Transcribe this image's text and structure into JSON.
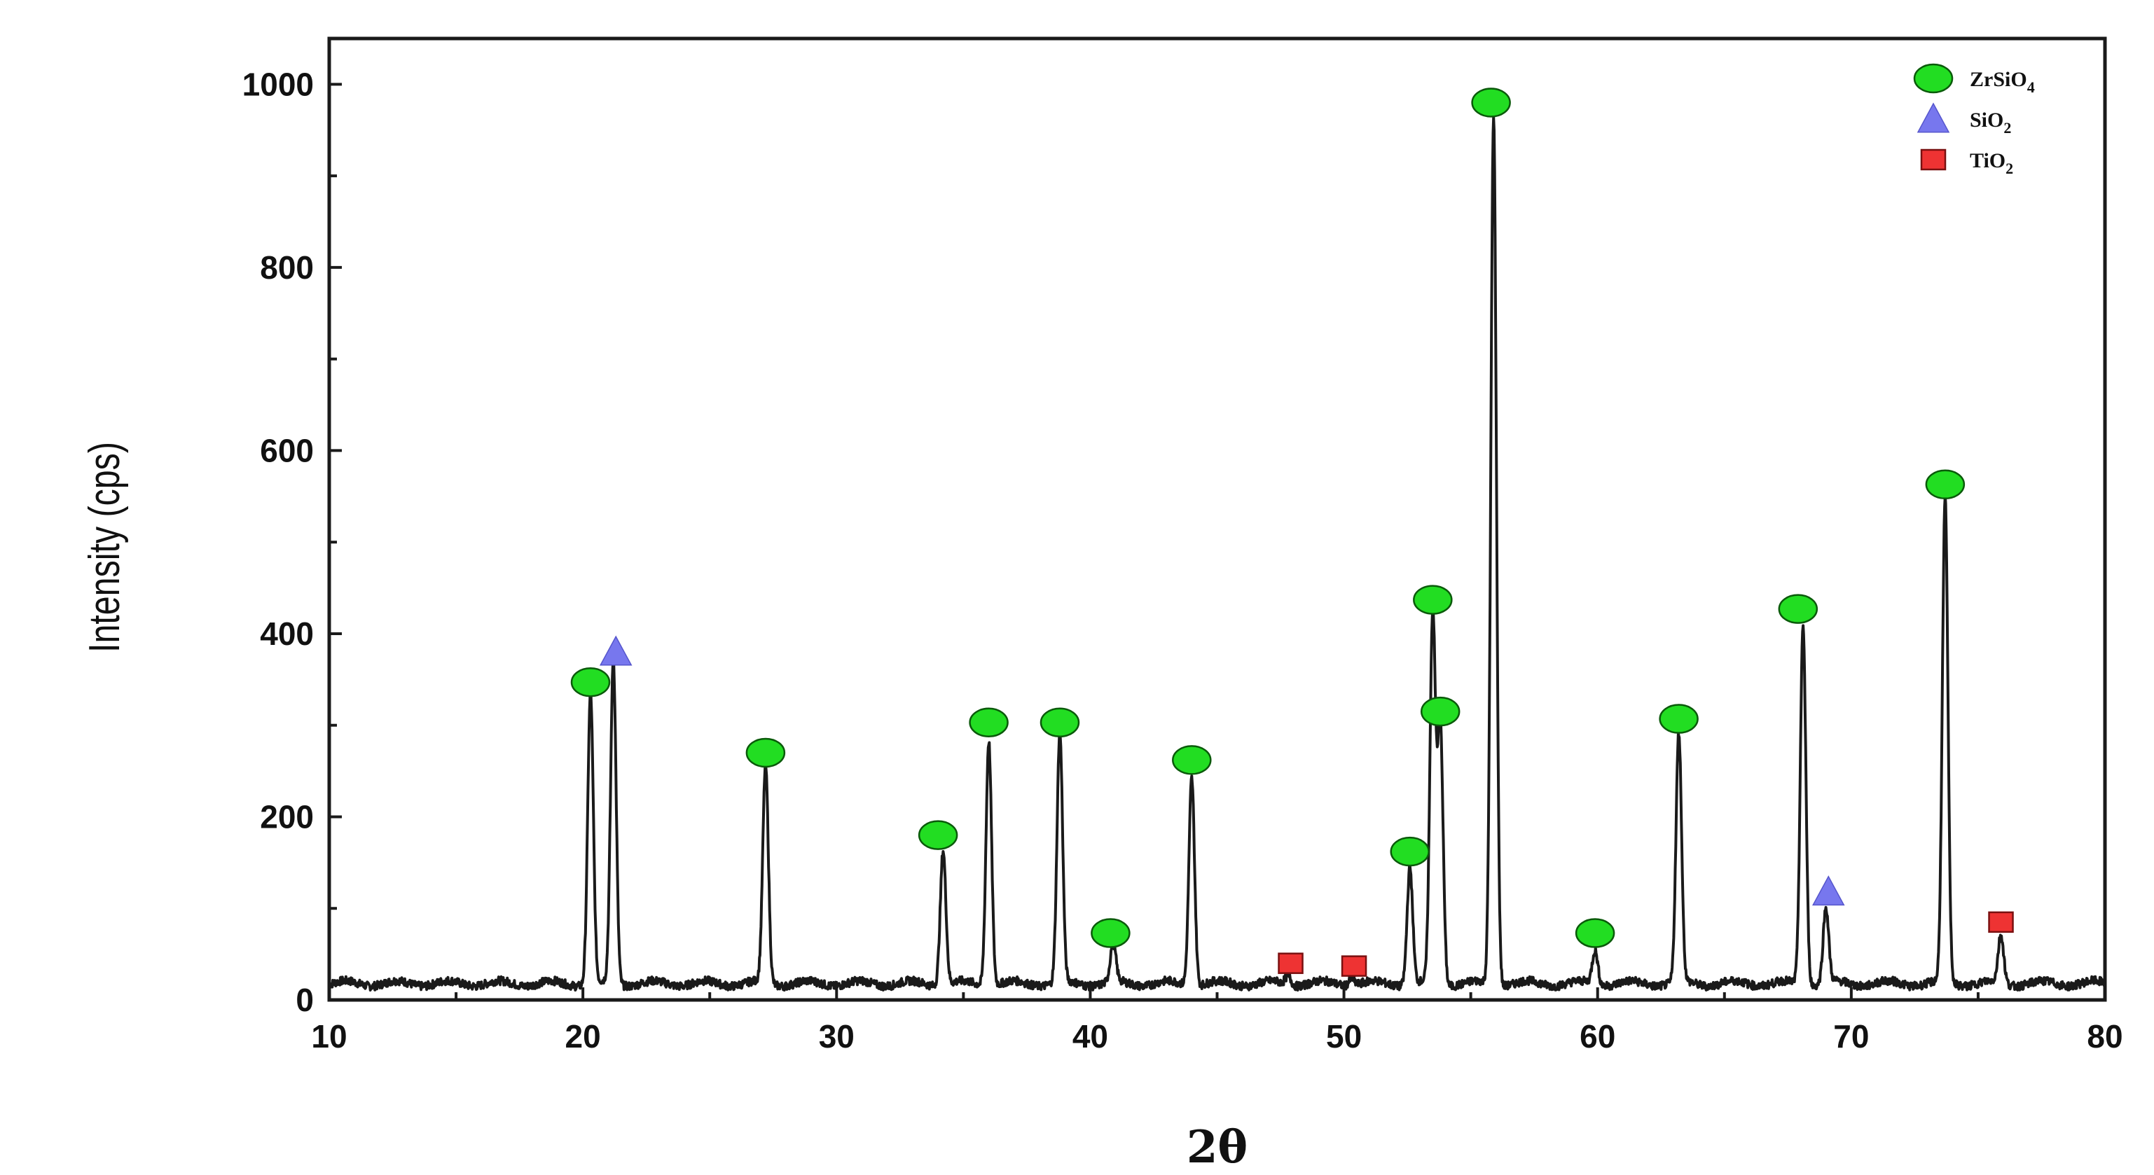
{
  "chart_data": {
    "type": "line",
    "title": "",
    "xlabel": "2θ",
    "ylabel": "Intensity (cps)",
    "xlim": [
      10,
      80
    ],
    "ylim": [
      0,
      1050
    ],
    "x_ticks": [
      10,
      20,
      30,
      40,
      50,
      60,
      70,
      80
    ],
    "y_ticks": [
      0,
      200,
      400,
      600,
      800,
      1000
    ],
    "baseline": 18,
    "grid": false,
    "legend_position": "top-right",
    "legend": [
      {
        "marker": "circle",
        "label": "ZrSiO",
        "sub": "4",
        "color": "#22dd22"
      },
      {
        "marker": "triangle",
        "label": "SiO",
        "sub": "2",
        "color": "#7777ee"
      },
      {
        "marker": "square",
        "label": "TiO",
        "sub": "2",
        "color": "#ee3333"
      }
    ],
    "peaks": [
      {
        "x": 20.3,
        "y": 335
      },
      {
        "x": 21.2,
        "y": 370
      },
      {
        "x": 27.2,
        "y": 255
      },
      {
        "x": 34.2,
        "y": 165
      },
      {
        "x": 36.0,
        "y": 285
      },
      {
        "x": 38.8,
        "y": 290
      },
      {
        "x": 40.9,
        "y": 60
      },
      {
        "x": 44.0,
        "y": 245
      },
      {
        "x": 47.8,
        "y": 28
      },
      {
        "x": 50.3,
        "y": 26
      },
      {
        "x": 52.6,
        "y": 145
      },
      {
        "x": 53.5,
        "y": 420
      },
      {
        "x": 53.8,
        "y": 300
      },
      {
        "x": 55.9,
        "y": 965
      },
      {
        "x": 59.9,
        "y": 55
      },
      {
        "x": 63.2,
        "y": 290
      },
      {
        "x": 68.1,
        "y": 410
      },
      {
        "x": 69.0,
        "y": 100
      },
      {
        "x": 73.7,
        "y": 545
      },
      {
        "x": 75.9,
        "y": 70
      }
    ],
    "phase_markers": [
      {
        "phase": "ZrSiO4",
        "shape": "circle",
        "x": 20.3,
        "y": 347
      },
      {
        "phase": "ZrSiO4",
        "shape": "circle",
        "x": 27.2,
        "y": 270
      },
      {
        "phase": "ZrSiO4",
        "shape": "circle",
        "x": 34.0,
        "y": 180
      },
      {
        "phase": "ZrSiO4",
        "shape": "circle",
        "x": 36.0,
        "y": 303
      },
      {
        "phase": "ZrSiO4",
        "shape": "circle",
        "x": 38.8,
        "y": 303
      },
      {
        "phase": "ZrSiO4",
        "shape": "circle",
        "x": 40.8,
        "y": 73
      },
      {
        "phase": "ZrSiO4",
        "shape": "circle",
        "x": 44.0,
        "y": 262
      },
      {
        "phase": "ZrSiO4",
        "shape": "circle",
        "x": 52.6,
        "y": 162
      },
      {
        "phase": "ZrSiO4",
        "shape": "circle",
        "x": 53.5,
        "y": 437
      },
      {
        "phase": "ZrSiO4",
        "shape": "circle",
        "x": 53.8,
        "y": 315
      },
      {
        "phase": "ZrSiO4",
        "shape": "circle",
        "x": 55.8,
        "y": 980
      },
      {
        "phase": "ZrSiO4",
        "shape": "circle",
        "x": 59.9,
        "y": 73
      },
      {
        "phase": "ZrSiO4",
        "shape": "circle",
        "x": 63.2,
        "y": 307
      },
      {
        "phase": "ZrSiO4",
        "shape": "circle",
        "x": 67.9,
        "y": 427
      },
      {
        "phase": "ZrSiO4",
        "shape": "circle",
        "x": 73.7,
        "y": 563
      },
      {
        "phase": "SiO2",
        "shape": "triangle",
        "x": 21.3,
        "y": 380
      },
      {
        "phase": "SiO2",
        "shape": "triangle",
        "x": 69.1,
        "y": 118
      },
      {
        "phase": "TiO2",
        "shape": "square",
        "x": 47.9,
        "y": 40
      },
      {
        "phase": "TiO2",
        "shape": "square",
        "x": 50.4,
        "y": 37
      },
      {
        "phase": "TiO2",
        "shape": "square",
        "x": 75.9,
        "y": 85
      }
    ]
  }
}
